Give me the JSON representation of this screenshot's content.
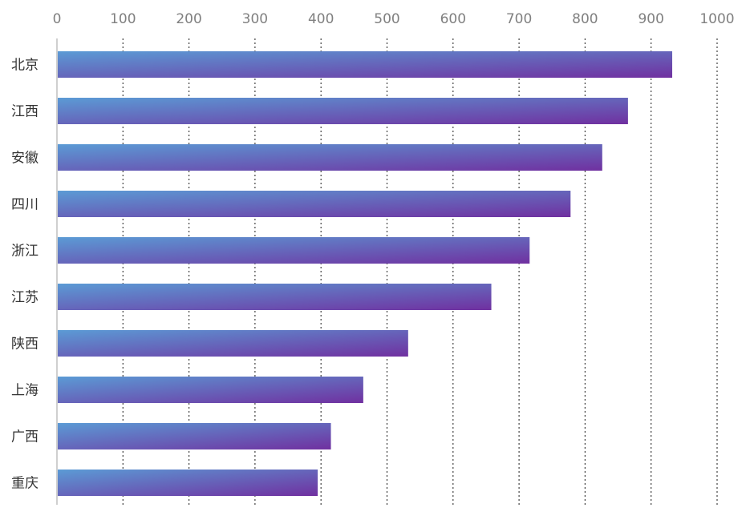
{
  "chart_data": {
    "type": "bar",
    "orientation": "horizontal",
    "title": "",
    "xlabel": "",
    "ylabel": "",
    "xlim": [
      0,
      1000
    ],
    "x_ticks": [
      "0",
      "100",
      "200",
      "300",
      "400",
      "500",
      "600",
      "700",
      "800",
      "900",
      "1000"
    ],
    "x_axis_position": "top",
    "grid": "vertical-dotted",
    "legend": "none",
    "categories": [
      "北京",
      "江西",
      "安徽",
      "四川",
      "浙江",
      "江苏",
      "陕西",
      "上海",
      "广西",
      "重庆"
    ],
    "values": [
      932,
      865,
      826,
      778,
      716,
      658,
      532,
      464,
      415,
      395
    ],
    "colors": {
      "bar_gradient_start": "#5B9BD5",
      "bar_gradient_end": "#7030A0",
      "grid": "#404040",
      "axis": "#BFBFBF",
      "tick_text": "#808080",
      "category_text": "#333333"
    }
  }
}
